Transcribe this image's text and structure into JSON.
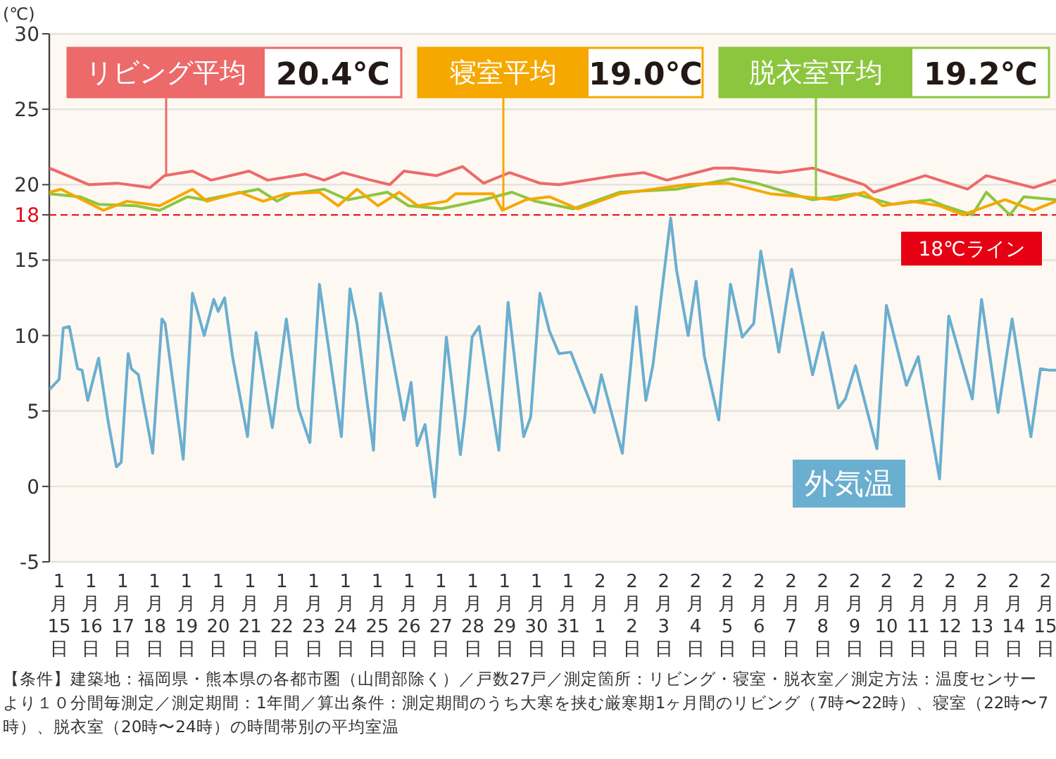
{
  "chart_data": {
    "type": "line",
    "ylabel": "(℃)",
    "xlim": [
      "--01-14T16:34",
      "--02-15T07:55"
    ],
    "xticks": [
      {
        "value": "--01-15",
        "label": "1月15日"
      },
      {
        "value": "--01-16",
        "label": "1月16日"
      },
      {
        "value": "--01-17",
        "label": "1月17日"
      },
      {
        "value": "--01-18",
        "label": "1月18日"
      },
      {
        "value": "--01-19",
        "label": "1月19日"
      },
      {
        "value": "--01-20",
        "label": "1月20日"
      },
      {
        "value": "--01-21",
        "label": "1月21日"
      },
      {
        "value": "--01-22",
        "label": "1月22日"
      },
      {
        "value": "--01-23",
        "label": "1月23日"
      },
      {
        "value": "--01-24",
        "label": "1月24日"
      },
      {
        "value": "--01-25",
        "label": "1月25日"
      },
      {
        "value": "--01-26",
        "label": "1月26日"
      },
      {
        "value": "--01-27",
        "label": "1月27日"
      },
      {
        "value": "--01-28",
        "label": "1月28日"
      },
      {
        "value": "--01-29",
        "label": "1月29日"
      },
      {
        "value": "--01-30",
        "label": "1月30日"
      },
      {
        "value": "--01-31",
        "label": "1月31日"
      },
      {
        "value": "--02-01",
        "label": "2月1日"
      },
      {
        "value": "--02-02",
        "label": "2月2日"
      },
      {
        "value": "--02-03",
        "label": "2月3日"
      },
      {
        "value": "--02-04",
        "label": "2月4日"
      },
      {
        "value": "--02-05",
        "label": "2月5日"
      },
      {
        "value": "--02-06",
        "label": "2月6日"
      },
      {
        "value": "--02-07",
        "label": "2月7日"
      },
      {
        "value": "--02-08",
        "label": "2月8日"
      },
      {
        "value": "--02-09",
        "label": "2月9日"
      },
      {
        "value": "--02-10",
        "label": "2月10日"
      },
      {
        "value": "--02-11",
        "label": "2月11日"
      },
      {
        "value": "--02-12",
        "label": "2月12日"
      },
      {
        "value": "--02-13",
        "label": "2月13日"
      },
      {
        "value": "--02-14",
        "label": "2月14日"
      },
      {
        "value": "--02-15",
        "label": "2月15日"
      }
    ],
    "ylim": [
      -5,
      30
    ],
    "yticks": [
      -5,
      0,
      5,
      10,
      15,
      18,
      20,
      25,
      30
    ],
    "grid": "y",
    "series": [
      {
        "name": "リビング平均",
        "color": "#ec6a6a",
        "x": [
          "--01-14T16:34",
          "--01-15T22:34",
          "--01-16T19:55",
          "--01-17T20:38",
          "--01-18T07:26",
          "--01-19T04:34",
          "--01-19T18:43",
          "--01-20T23:17",
          "--01-21T13:12",
          "--01-22T17:46",
          "--01-23T07:55",
          "--01-23T22:05",
          "--01-24T19:12",
          "--01-25T09:22",
          "--01-25T20:10",
          "--01-26T20:53",
          "--01-27T16:19",
          "--01-28T08:10",
          "--01-29T03:50",
          "--01-30T02:38",
          "--01-30T17:02",
          "--02-01T11:31",
          "--02-02T08:53",
          "--02-03T02:24",
          "--02-04T13:55",
          "--02-05T04:05",
          "--02-06T15:22",
          "--02-07T16:19",
          "--02-09T07:12",
          "--02-09T14:24",
          "--02-11T05:17",
          "--02-12T13:12",
          "--02-13T03:22",
          "--02-14T14:53",
          "--02-15T07:55"
        ],
        "values": [
          21.1,
          20.0,
          20.1,
          19.8,
          20.6,
          20.9,
          20.3,
          20.9,
          20.3,
          20.7,
          20.3,
          20.8,
          20.3,
          20.0,
          20.9,
          20.6,
          21.2,
          20.1,
          20.8,
          20.1,
          20.0,
          20.6,
          20.8,
          20.3,
          21.1,
          21.1,
          20.8,
          21.1,
          20.0,
          19.5,
          20.6,
          19.7,
          20.6,
          19.8,
          20.3
        ]
      },
      {
        "name": "寝室平均",
        "color": "#f5a800",
        "x": [
          "--01-14T16:34",
          "--01-15T01:26",
          "--01-16T09:22",
          "--01-17T03:07",
          "--01-18T03:50",
          "--01-19T04:34",
          "--01-19T15:22",
          "--01-20T16:05",
          "--01-21T09:50",
          "--01-22T03:22",
          "--01-23T04:19",
          "--01-23T18:29",
          "--01-24T08:38",
          "--01-25T00:29",
          "--01-25T16:34",
          "--01-26T06:43",
          "--01-27T04:05",
          "--01-27T11:02",
          "--01-28T15:22",
          "--01-28T22:19",
          "--01-29T16:05",
          "--01-30T09:50",
          "--01-31T07:12",
          "--02-01T15:07",
          "--02-03T16:48",
          "--02-05T00:29",
          "--02-06T08:24",
          "--02-08T10:05",
          "--02-09T07:12",
          "--02-09T21:22",
          "--02-10T18:43",
          "--02-11T16:05",
          "--02-12T09:36",
          "--02-13T17:31",
          "--02-14T14:53",
          "--02-15T07:55"
        ],
        "values": [
          19.5,
          19.7,
          18.3,
          18.9,
          18.6,
          19.7,
          18.9,
          19.5,
          18.9,
          19.4,
          19.5,
          18.6,
          19.7,
          18.6,
          19.5,
          18.6,
          18.9,
          19.4,
          19.4,
          18.3,
          19.0,
          19.2,
          18.4,
          19.4,
          20.0,
          20.1,
          19.4,
          19.0,
          19.5,
          18.6,
          18.9,
          18.6,
          18.0,
          19.0,
          18.3,
          18.9
        ]
      },
      {
        "name": "脱衣室平均",
        "color": "#8cc63f",
        "x": [
          "--01-14T16:34",
          "--01-15T15:36",
          "--01-16T05:46",
          "--01-17T10:05",
          "--01-18T03:50",
          "--01-19T00:58",
          "--01-19T13:26",
          "--01-21T06:14",
          "--01-21T20:24",
          "--01-22T06:58",
          "--01-23T07:55",
          "--01-24T01:41",
          "--01-25T07:41",
          "--01-25T23:31",
          "--01-27T00:29",
          "--01-28T08:10",
          "--01-29T05:31",
          "--01-29T23:17",
          "--01-31T03:36",
          "--02-01T15:07",
          "--02-03T09:36",
          "--02-05T04:05",
          "--02-05T21:50",
          "--02-07T16:19",
          "--02-09T00:14",
          "--02-10T04:34",
          "--02-11T08:53",
          "--02-11T19:26",
          "--02-12T16:48",
          "--02-13T03:22",
          "--02-13T21:07",
          "--02-14T07:41",
          "--02-15T07:55"
        ],
        "values": [
          19.4,
          19.2,
          18.7,
          18.6,
          18.3,
          19.2,
          19.0,
          19.7,
          18.9,
          19.4,
          19.7,
          19.0,
          19.5,
          18.6,
          18.4,
          19.0,
          19.5,
          18.9,
          18.4,
          19.5,
          19.7,
          20.4,
          20.1,
          19.0,
          19.4,
          18.7,
          19.0,
          18.6,
          18.0,
          19.5,
          18.0,
          19.2,
          19.0
        ]
      },
      {
        "name": "外気温",
        "color": "#6aaed0",
        "x": [
          "--01-14T16:34",
          "--01-15T00:00",
          "--01-15T03:07",
          "--01-15T07:41",
          "--01-15T13:55",
          "--01-15T17:17",
          "--01-15T21:36",
          "--01-16T05:46",
          "--01-16T12:58",
          "--01-16T19:12",
          "--01-16T22:48",
          "--01-17T04:05",
          "--01-17T06:29",
          "--01-17T11:46",
          "--01-17T22:34",
          "--01-18T05:31",
          "--01-18T07:55",
          "--01-18T21:36",
          "--01-19T04:34",
          "--01-19T13:26",
          "--01-19T20:38",
          "--01-20T00:00",
          "--01-20T04:48",
          "--01-20T10:48",
          "--01-20T22:05",
          "--01-21T04:34",
          "--01-21T16:48",
          "--01-22T03:22",
          "--01-22T12:29",
          "--01-22T21:07",
          "--01-23T04:19",
          "--01-23T09:36",
          "--01-23T20:53",
          "--01-24T03:22",
          "--01-24T08:38",
          "--01-24T21:07",
          "--01-25T02:24",
          "--01-25T09:22",
          "--01-25T20:10",
          "--01-26T01:26",
          "--01-26T06:00",
          "--01-26T12:00",
          "--01-26T19:12",
          "--01-27T04:05",
          "--01-27T14:38",
          "--01-27T18:00",
          "--01-27T23:31",
          "--01-28T04:48",
          "--01-28T19:41",
          "--01-29T02:38",
          "--01-29T14:24",
          "--01-29T19:41",
          "--01-30T02:38",
          "--01-30T09:50",
          "--01-30T17:02",
          "--01-31T01:55",
          "--01-31T19:41",
          "--02-01T00:58",
          "--02-01T16:48",
          "--02-02T03:22",
          "--02-02T10:34",
          "--02-02T15:50",
          "--02-03T05:17",
          "--02-03T09:36",
          "--02-03T18:29",
          "--02-04T00:29",
          "--02-04T06:43",
          "--02-04T17:31",
          "--02-05T02:24",
          "--02-05T11:17",
          "--02-05T19:55",
          "--02-06T01:12",
          "--02-06T14:53",
          "--02-07T00:29",
          "--02-07T16:19",
          "--02-08T00:00",
          "--02-08T11:46",
          "--02-08T17:02",
          "--02-09T00:43",
          "--02-09T16:48",
          "--02-10T00:00",
          "--02-10T15:07",
          "--02-11T00:00",
          "--02-11T16:05",
          "--02-11T23:02",
          "--02-12T16:48",
          "--02-12T23:46",
          "--02-13T12:14",
          "--02-13T22:48",
          "--02-14T12:58",
          "--02-14T20:10",
          "--02-15T03:22",
          "--02-15T07:55"
        ],
        "values": [
          6.4,
          7.1,
          10.5,
          10.6,
          7.8,
          7.7,
          5.7,
          8.5,
          4.3,
          1.3,
          1.6,
          8.8,
          7.8,
          7.4,
          2.2,
          11.1,
          10.8,
          1.8,
          12.8,
          10.0,
          12.4,
          11.6,
          12.5,
          8.6,
          3.3,
          10.2,
          3.9,
          11.1,
          5.2,
          2.9,
          13.4,
          10.2,
          3.3,
          13.1,
          10.8,
          2.4,
          12.8,
          9.6,
          4.4,
          6.9,
          2.7,
          4.1,
          -0.7,
          9.9,
          2.1,
          4.6,
          9.9,
          10.6,
          2.4,
          12.2,
          3.3,
          4.6,
          12.8,
          10.3,
          8.8,
          8.9,
          4.9,
          7.4,
          2.2,
          11.9,
          5.7,
          8.0,
          17.8,
          14.4,
          10.0,
          13.6,
          8.6,
          4.4,
          13.4,
          9.9,
          10.8,
          15.6,
          8.9,
          14.4,
          7.4,
          10.2,
          5.2,
          5.8,
          8.0,
          2.5,
          12.0,
          6.7,
          8.6,
          0.5,
          11.3,
          5.8,
          12.4,
          4.9,
          11.1,
          3.3,
          7.8,
          7.7,
          7.7
        ]
      }
    ],
    "ref_lines": [
      {
        "axis": "y",
        "value": 18,
        "label": "18℃ライン",
        "color": "#e60012",
        "line_style": "dashed"
      }
    ],
    "annotations": [
      "20.4℃",
      "19.0℃",
      "19.2℃",
      "【条件】建築地：福岡県・熊本県の各都市圏（山間部除く）／戸数27戸／測定箇所：リビング・寝室・脱衣室／測定方法：温度センサーより１０分間毎測定／測定期間：1年間／算出条件：測定期間のうち大寒を挟む厳寒期1ヶ月間のリビング（7時〜22時）、寝室（22時〜7時）、脱衣室（20時〜24時）の時間帯別の平均室温"
    ]
  }
}
